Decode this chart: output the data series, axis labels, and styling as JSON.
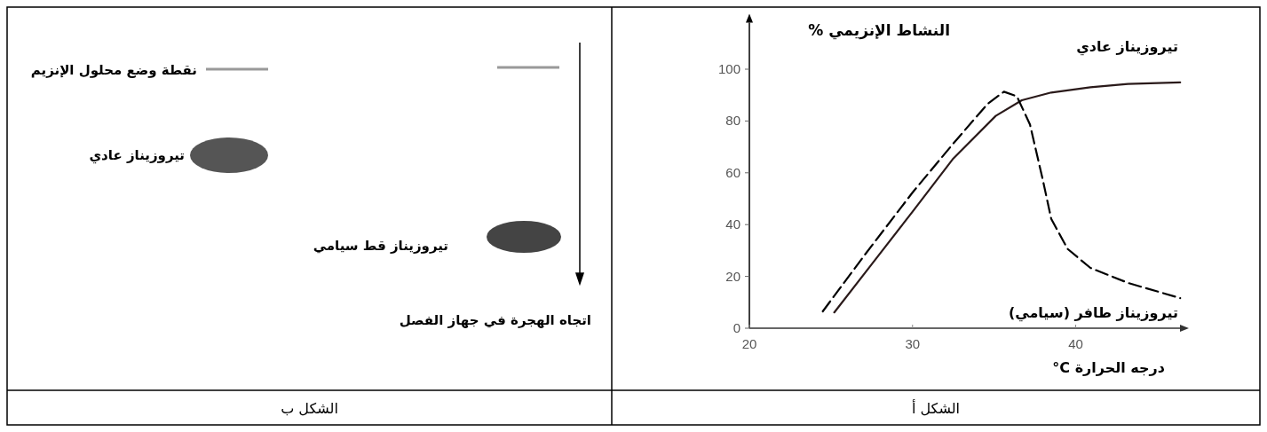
{
  "chart_data": [
    {
      "type": "other",
      "title": "الشكل ب",
      "annotations": [
        "نقطة وضع محلول الإنزيم",
        "تيروزيناز عادي",
        "تيروزيناز قط سيامي",
        "اتجاه الهجرة في جهاز الفصل"
      ]
    },
    {
      "type": "line",
      "title": "الشكل أ",
      "xlabel": "درجه الحرارة C°",
      "ylabel": "النشاط الإنزيمي %",
      "xlim": [
        20,
        46.5
      ],
      "ylim": [
        0,
        118
      ],
      "xticks": [
        20,
        30,
        40
      ],
      "yticks": [
        0,
        20,
        40,
        60,
        80,
        100
      ],
      "series": [
        {
          "name": "تيروزيناز عادي",
          "color": "#2a1a1a",
          "line_style": "solid",
          "x": [
            25.2,
            27.5,
            30,
            32.5,
            35.1,
            36.7,
            38.5,
            40.9,
            43.2,
            46.4
          ],
          "values": [
            6.1,
            24.7,
            45,
            65.5,
            82,
            88,
            91,
            93,
            94.3,
            94.9
          ]
        },
        {
          "name": "تيروزيناز طافر (سيامي)",
          "color": "#000000",
          "line_style": "dashed",
          "x": [
            24.5,
            27,
            30,
            32.5,
            34.6,
            35.6,
            36.4,
            37.2,
            38,
            38.5,
            39.5,
            40.9,
            43.2,
            46.4
          ],
          "values": [
            6.5,
            27.7,
            52.4,
            71.3,
            86.6,
            91.3,
            89.5,
            78.6,
            56.8,
            42.2,
            30.6,
            23.3,
            17.5,
            11.6
          ]
        }
      ]
    }
  ]
}
